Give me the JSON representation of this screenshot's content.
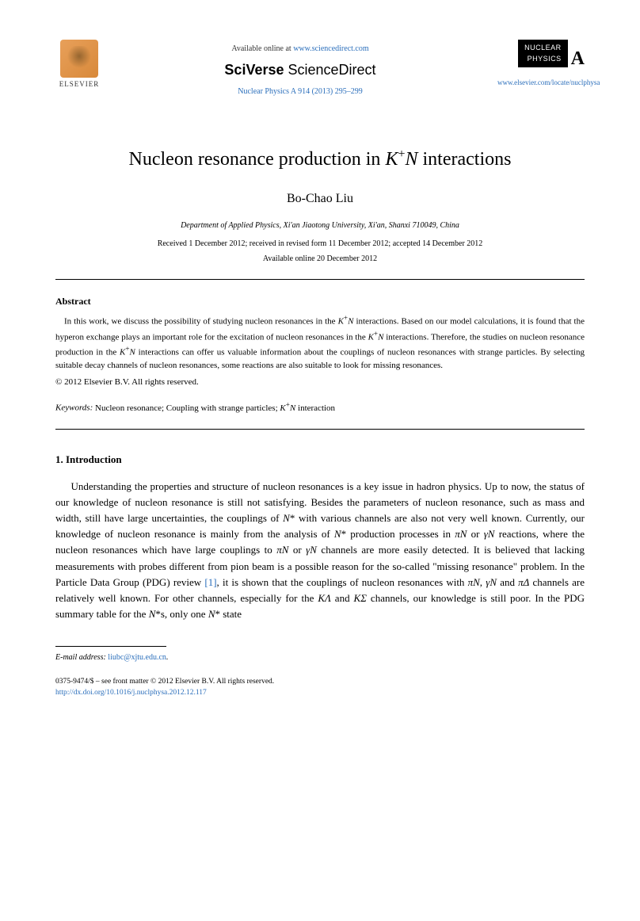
{
  "header": {
    "elsevier_label": "ELSEVIER",
    "available_prefix": "Available online at ",
    "available_url": "www.sciencedirect.com",
    "sciverse_brand": "SciVerse",
    "sciencedirect_brand": "ScienceDirect",
    "journal_ref": "Nuclear Physics A 914 (2013) 295–299",
    "np_box_line1": "NUCLEAR",
    "np_box_line2": "PHYSICS",
    "np_a": "A",
    "journal_url": "www.elsevier.com/locate/nuclphysa"
  },
  "title_html": "Nucleon resonance production in <i>K</i><sup>+</sup><i>N</i> interactions",
  "author": "Bo-Chao Liu",
  "affiliation": "Department of Applied Physics, Xi'an Jiaotong University, Xi'an, Shanxi 710049, China",
  "dates_line1": "Received 1 December 2012; received in revised form 11 December 2012; accepted 14 December 2012",
  "dates_line2": "Available online 20 December 2012",
  "abstract": {
    "heading": "Abstract",
    "text_html": "In this work, we discuss the possibility of studying nucleon resonances in the <i>K</i><sup>+</sup><i>N</i> interactions. Based on our model calculations, it is found that the hyperon exchange plays an important role for the excitation of nucleon resonances in the <i>K</i><sup>+</sup><i>N</i> interactions. Therefore, the studies on nucleon resonance production in the <i>K</i><sup>+</sup><i>N</i> interactions can offer us valuable information about the couplings of nucleon resonances with strange particles. By selecting suitable decay channels of nucleon resonances, some reactions are also suitable to look for missing resonances.",
    "copyright": "© 2012 Elsevier B.V. All rights reserved."
  },
  "keywords": {
    "label": "Keywords:",
    "text_html": " Nucleon resonance; Coupling with strange particles; <i>K</i><sup>+</sup><i>N</i> interaction"
  },
  "section1": {
    "heading": "1. Introduction",
    "para_html": "Understanding the properties and structure of nucleon resonances is a key issue in hadron physics. Up to now, the status of our knowledge of nucleon resonance is still not satisfying. Besides the parameters of nucleon resonance, such as mass and width, still have large uncertainties, the couplings of <i>N</i>* with various channels are also not very well known. Currently, our knowledge of nucleon resonance is mainly from the analysis of <i>N</i>* production processes in <i>πN</i> or <i>γN</i> reactions, where the nucleon resonances which have large couplings to <i>πN</i> or <i>γN</i> channels are more easily detected. It is believed that lacking measurements with probes different from pion beam is a possible reason for the so-called \"missing resonance\" problem. In the Particle Data Group (PDG) review <span class=\"ref\">[1]</span>, it is shown that the couplings of nucleon resonances with <i>πN</i>, <i>γN</i> and <i>πΔ</i> channels are relatively well known. For other channels, especially for the <i>KΛ</i> and <i>KΣ</i> channels, our knowledge is still poor. In the PDG summary table for the <i>N</i>*s, only one <i>N</i>* state"
  },
  "footer": {
    "email_label": "E-mail address:",
    "email": "liubc@xjtu.edu.cn",
    "issn_line": "0375-9474/$ – see front matter © 2012 Elsevier B.V. All rights reserved.",
    "doi": "http://dx.doi.org/10.1016/j.nuclphysa.2012.12.117"
  }
}
